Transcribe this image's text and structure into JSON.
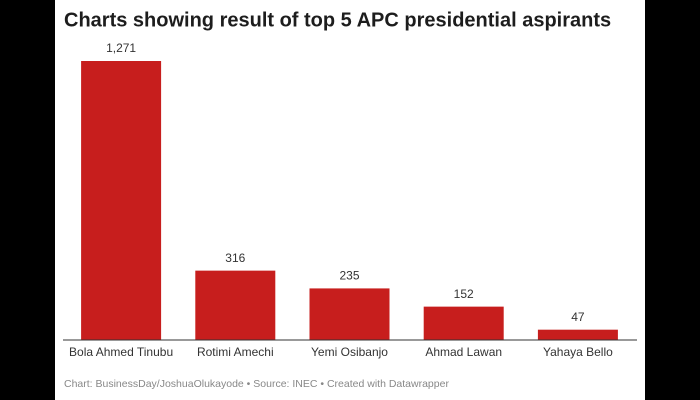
{
  "chart_data": {
    "type": "bar",
    "title": "Charts showing result of top 5 APC presidential aspirants",
    "categories": [
      "Bola Ahmed Tinubu",
      "Rotimi Amechi",
      "Yemi Osibanjo",
      "Ahmad Lawan",
      "Yahaya Bello"
    ],
    "values": [
      1271,
      316,
      235,
      152,
      47
    ],
    "value_labels": [
      "1,271",
      "316",
      "235",
      "152",
      "47"
    ],
    "color": "#c71e1d",
    "source": "Chart: BusinessDay/JoshuaOlukayode • Source: INEC • Created with Datawrapper"
  }
}
